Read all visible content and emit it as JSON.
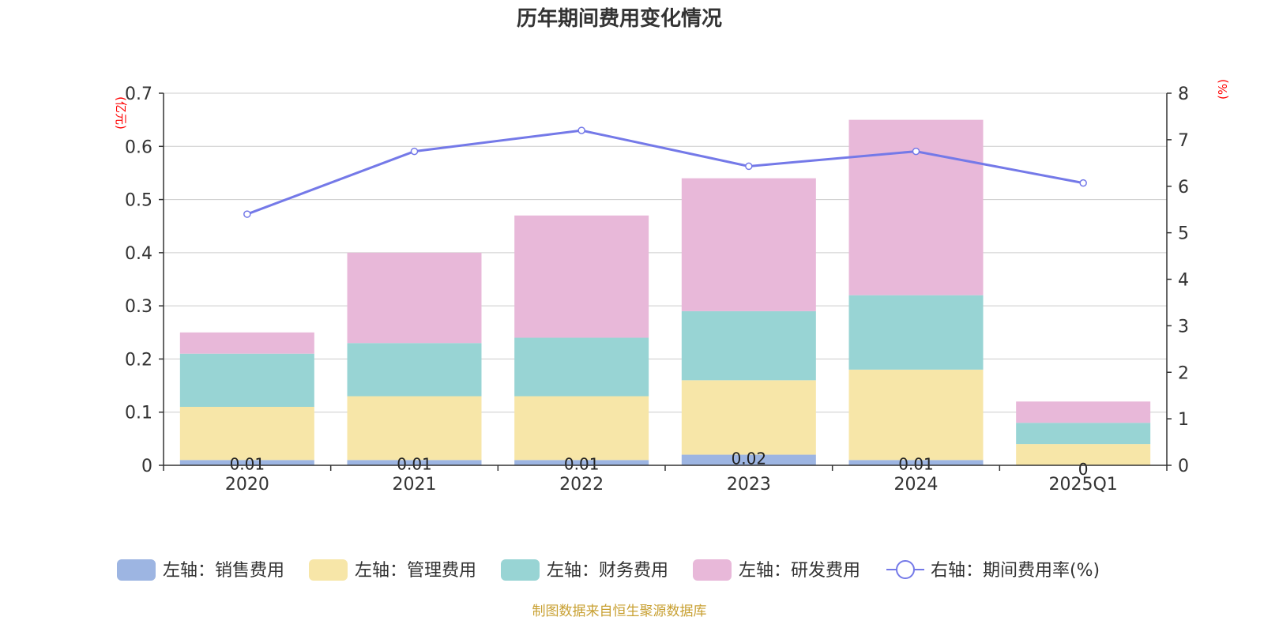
{
  "chart_data": {
    "type": "bar",
    "title": "历年期间费用变化情况",
    "categories": [
      "2020",
      "2021",
      "2022",
      "2023",
      "2024",
      "2025Q1"
    ],
    "left_axis": {
      "label": "(亿元)",
      "range": [
        0,
        0.7
      ],
      "ticks": [
        "0",
        "0.1",
        "0.2",
        "0.3",
        "0.4",
        "0.5",
        "0.6",
        "0.7"
      ],
      "tick_values": [
        0,
        0.1,
        0.2,
        0.3,
        0.4,
        0.5,
        0.6,
        0.7
      ]
    },
    "right_axis": {
      "label": "(%)",
      "range": [
        0,
        8
      ],
      "ticks": [
        "0",
        "1",
        "2",
        "3",
        "4",
        "5",
        "6",
        "7",
        "8"
      ],
      "tick_values": [
        0,
        1,
        2,
        3,
        4,
        5,
        6,
        7,
        8
      ]
    },
    "series": [
      {
        "name": "左轴：销售费用",
        "kind": "bar",
        "axis": "left",
        "color": "#9db5e2",
        "values": [
          0.01,
          0.01,
          0.01,
          0.02,
          0.01,
          0
        ],
        "labels": [
          "0.01",
          "0.01",
          "0.01",
          "0.02",
          "0.01",
          "0"
        ]
      },
      {
        "name": "左轴：管理费用",
        "kind": "bar",
        "axis": "left",
        "color": "#f7e6a8",
        "values": [
          0.1,
          0.12,
          0.12,
          0.14,
          0.17,
          0.04
        ]
      },
      {
        "name": "左轴：财务费用",
        "kind": "bar",
        "axis": "left",
        "color": "#98d4d4",
        "values": [
          0.1,
          0.1,
          0.11,
          0.13,
          0.14,
          0.04
        ]
      },
      {
        "name": "左轴：研发费用",
        "kind": "bar",
        "axis": "left",
        "color": "#e8b8d9",
        "values": [
          0.04,
          0.17,
          0.23,
          0.25,
          0.33,
          0.04
        ]
      },
      {
        "name": "右轴：期间费用率(%)",
        "kind": "line",
        "axis": "right",
        "color": "#7479e8",
        "values": [
          5.4,
          6.75,
          7.2,
          6.43,
          6.75,
          6.07
        ]
      }
    ],
    "legend_position": "bottom",
    "grid": true
  },
  "source": "制图数据来自恒生聚源数据库",
  "colors": {
    "title": "#333333",
    "axis_label": "#ff0000",
    "source": "#c8a032",
    "tick": "#333333",
    "grid": "#cccccc"
  }
}
